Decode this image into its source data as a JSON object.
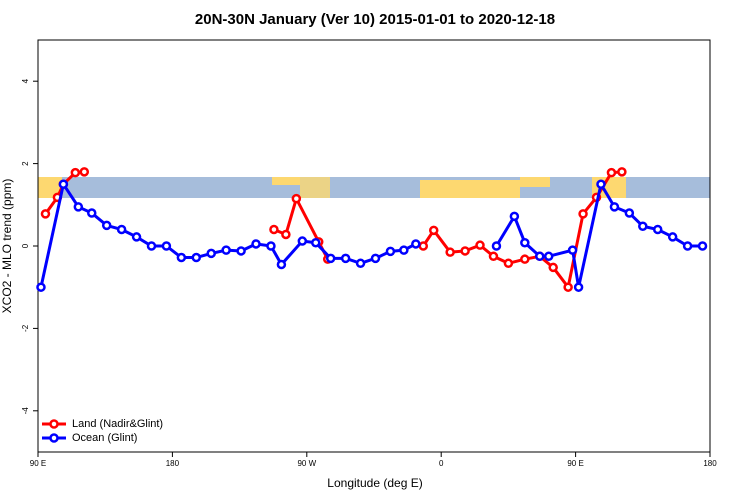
{
  "chart_data": {
    "type": "line",
    "title": "20N-30N January (Ver 10)   2015-01-01 to 2020-12-18",
    "x_label": "Longitude (deg E)",
    "y_label": "XCO2 - MLO trend (ppm)",
    "xlim": [
      90,
      540
    ],
    "ylim": [
      -5,
      5
    ],
    "xticks": [
      {
        "value": 90,
        "label": "90 E"
      },
      180,
      {
        "value": 270,
        "label": "90 W"
      },
      {
        "value": 360,
        "label": "0"
      },
      {
        "value": 450,
        "label": "90 E"
      },
      {
        "value": 540,
        "label": "180"
      }
    ],
    "yticks": [
      -4,
      -2,
      0,
      2,
      4
    ],
    "legend": "bottom-left",
    "series": [
      {
        "name": "Land (Nadir&Glint)",
        "color": "#ff0000",
        "x": [
          95,
          103,
          107,
          115,
          121,
          null,
          248,
          256,
          263,
          278,
          284,
          null,
          348,
          355,
          366,
          376,
          386,
          395,
          405,
          416,
          426,
          435,
          445,
          455,
          464,
          474,
          481
        ],
        "values": [
          0.78,
          1.18,
          1.5,
          1.78,
          1.8,
          null,
          0.4,
          0.28,
          1.15,
          0.1,
          -0.32,
          null,
          0.0,
          0.38,
          -0.15,
          -0.12,
          0.02,
          -0.25,
          -0.42,
          -0.32,
          -0.25,
          -0.52,
          -1.0,
          0.78,
          1.18,
          1.78,
          1.8
        ]
      },
      {
        "name": "Ocean (Glint)",
        "color": "#0000ff",
        "x": [
          92,
          107,
          117,
          126,
          136,
          146,
          156,
          166,
          176,
          186,
          196,
          206,
          216,
          226,
          236,
          246,
          253,
          267,
          276,
          286,
          296,
          306,
          316,
          326,
          335,
          343,
          null,
          397,
          409,
          416,
          426,
          432,
          448,
          452,
          467,
          476,
          486,
          495,
          505,
          515,
          525,
          535
        ],
        "values": [
          -1.0,
          1.5,
          0.95,
          0.8,
          0.5,
          0.4,
          0.22,
          0.0,
          0.0,
          -0.28,
          -0.28,
          -0.18,
          -0.1,
          -0.12,
          0.05,
          0.0,
          -0.45,
          0.12,
          0.08,
          -0.3,
          -0.3,
          -0.42,
          -0.3,
          -0.13,
          -0.1,
          0.05,
          null,
          0.0,
          0.72,
          0.08,
          -0.25,
          -0.25,
          -0.1,
          -1.0,
          1.5,
          0.95,
          0.8,
          0.48,
          0.4,
          0.22,
          0.0,
          0.0
        ]
      }
    ]
  }
}
